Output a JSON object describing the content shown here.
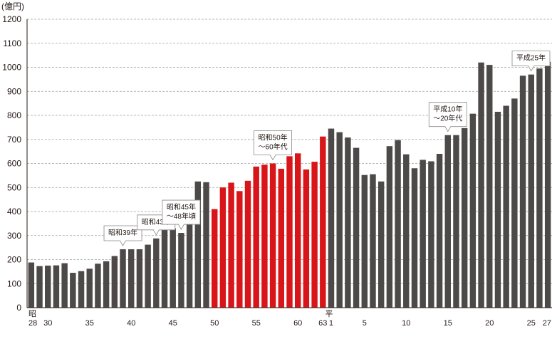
{
  "chart_data": {
    "type": "bar",
    "title": "",
    "xlabel": "",
    "ylabel": "",
    "unit_label": "(億円)",
    "ylim": [
      0,
      1200
    ],
    "yticks": [
      0,
      100,
      200,
      300,
      400,
      500,
      600,
      700,
      800,
      900,
      1000,
      1100,
      1200
    ],
    "grid": "horizontal-dashed",
    "colors": {
      "default": "#4d4948",
      "highlight": "#d81519",
      "callout_highlight_text": "#d81519"
    },
    "era_markers": [
      "昭",
      "平"
    ],
    "xtick_labels": [
      {
        "category": "S28",
        "text": "28"
      },
      {
        "category": "S30",
        "text": "30"
      },
      {
        "category": "S35",
        "text": "35"
      },
      {
        "category": "S40",
        "text": "40"
      },
      {
        "category": "S45",
        "text": "45"
      },
      {
        "category": "S50",
        "text": "50"
      },
      {
        "category": "S55",
        "text": "55"
      },
      {
        "category": "S60",
        "text": "60"
      },
      {
        "category": "S63",
        "text": "63"
      },
      {
        "category": "H1",
        "text": "1"
      },
      {
        "category": "H5",
        "text": "5"
      },
      {
        "category": "H10",
        "text": "10"
      },
      {
        "category": "H15",
        "text": "15"
      },
      {
        "category": "H20",
        "text": "20"
      },
      {
        "category": "H25",
        "text": "25"
      },
      {
        "category": "H27",
        "text": "27"
      }
    ],
    "categories": [
      "S28",
      "S29",
      "S30",
      "S31",
      "S32",
      "S33",
      "S34",
      "S35",
      "S36",
      "S37",
      "S38",
      "S39",
      "S40",
      "S41",
      "S42",
      "S43",
      "S44",
      "S45",
      "S46",
      "S47",
      "S48",
      "S49",
      "S50",
      "S51",
      "S52",
      "S53",
      "S54",
      "S55",
      "S56",
      "S57",
      "S58",
      "S59",
      "S60",
      "S61",
      "S62",
      "S63",
      "H1",
      "H2",
      "H3",
      "H4",
      "H5",
      "H6",
      "H7",
      "H8",
      "H9",
      "H10",
      "H11",
      "H12",
      "H13",
      "H14",
      "H15",
      "H16",
      "H17",
      "H18",
      "H19",
      "H20",
      "H21",
      "H22",
      "H23",
      "H24",
      "H25",
      "H26",
      "H27"
    ],
    "values": [
      188,
      173,
      175,
      176,
      185,
      145,
      152,
      162,
      183,
      193,
      215,
      243,
      243,
      243,
      262,
      288,
      325,
      330,
      311,
      350,
      525,
      522,
      410,
      500,
      520,
      485,
      528,
      587,
      595,
      600,
      578,
      630,
      642,
      575,
      607,
      712,
      745,
      730,
      708,
      665,
      552,
      555,
      525,
      672,
      697,
      638,
      580,
      615,
      609,
      640,
      718,
      718,
      747,
      807,
      1020,
      1010,
      815,
      840,
      870,
      965,
      970,
      995,
      1023
    ],
    "highlight_range": [
      "S50",
      "S63"
    ],
    "callouts": [
      {
        "category": "S39",
        "lines": [
          "昭和39年"
        ],
        "highlight": false
      },
      {
        "category": "S43",
        "lines": [
          "昭和43年"
        ],
        "highlight": false
      },
      {
        "category": "S46",
        "lines": [
          "昭和45年",
          "～48年頃"
        ],
        "highlight": false
      },
      {
        "category": "S57",
        "lines": [
          "昭和50年",
          "～60年代"
        ],
        "highlight": true
      },
      {
        "category": "H15",
        "lines": [
          "平成10年",
          "～20年代"
        ],
        "highlight": false
      },
      {
        "category": "H25",
        "lines": [
          "平成25年"
        ],
        "highlight": false
      }
    ]
  }
}
